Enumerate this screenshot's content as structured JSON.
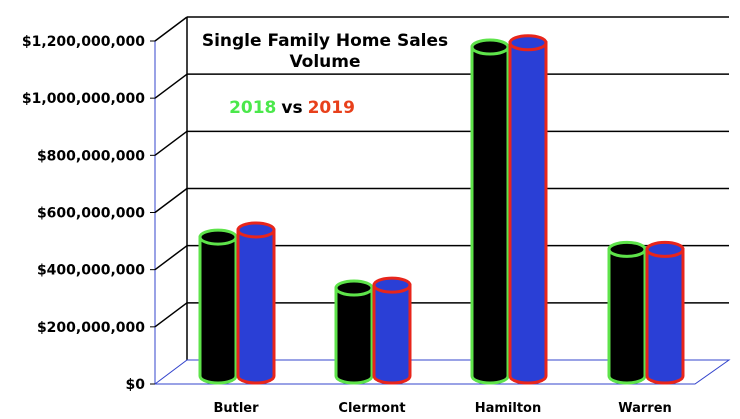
{
  "chart_data": {
    "type": "bar",
    "title": [
      "Single Family Home Sales",
      "Volume"
    ],
    "subtitle": {
      "first": "2018",
      "separator": "vs",
      "second": "2019"
    },
    "categories": [
      "Butler",
      "Clermont",
      "Hamilton",
      "Warren"
    ],
    "series": [
      {
        "name": "2018",
        "values": [
          465000000,
          287000000,
          1130000000,
          422000000
        ],
        "fill": "#000000",
        "outline": "#5ee34a"
      },
      {
        "name": "2019",
        "values": [
          490000000,
          297000000,
          1145000000,
          422000000
        ],
        "fill": "#2a3fd6",
        "outline": "#e8251b"
      }
    ],
    "yticks": [
      "$0",
      "$200,000,000",
      "$400,000,000",
      "$600,000,000",
      "$800,000,000",
      "$1,000,000,000",
      "$1,200,000,000"
    ],
    "ylim": [
      0,
      1200000000
    ],
    "xlabel": "",
    "ylabel": "",
    "grid": true,
    "legend": "none",
    "colors": {
      "year1": "#4be84b",
      "year2": "#e8401b"
    }
  }
}
